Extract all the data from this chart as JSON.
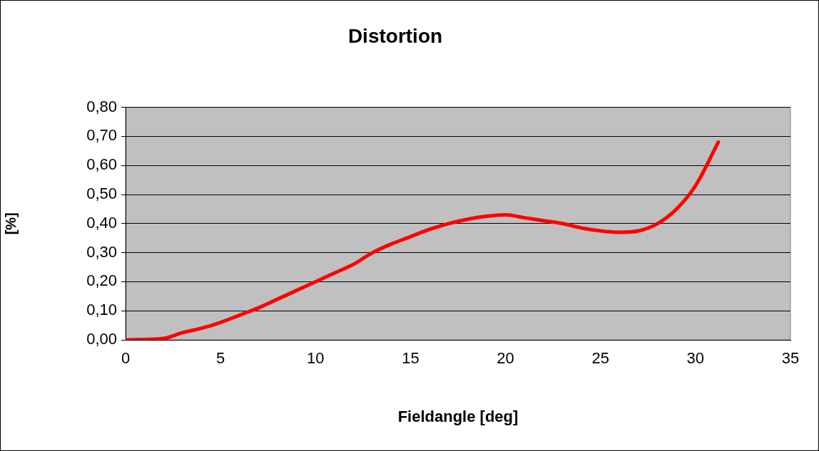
{
  "chart_data": {
    "type": "line",
    "title": "Distortion",
    "xlabel": "Fieldangle [deg]",
    "ylabel": "[%]",
    "series": [
      {
        "color": "#ff0000",
        "x": [
          0,
          2,
          3,
          4,
          5,
          6,
          7,
          8,
          9,
          10,
          11,
          12,
          13,
          14,
          15,
          16,
          17,
          18,
          19,
          20,
          21,
          22,
          23,
          24,
          25,
          26,
          27,
          28,
          29,
          30,
          31.2
        ],
        "values": [
          0,
          0.005,
          0.025,
          0.04,
          0.06,
          0.085,
          0.11,
          0.14,
          0.17,
          0.2,
          0.23,
          0.26,
          0.3,
          0.33,
          0.355,
          0.38,
          0.4,
          0.415,
          0.425,
          0.43,
          0.42,
          0.41,
          0.4,
          0.385,
          0.375,
          0.37,
          0.375,
          0.4,
          0.45,
          0.53,
          0.68
        ]
      }
    ],
    "xlim": [
      0,
      35
    ],
    "xticks": [
      0,
      5,
      10,
      15,
      20,
      25,
      30,
      35
    ],
    "ylim": [
      0,
      0.8
    ],
    "yticks": [
      {
        "value": 0,
        "label": "0,00"
      },
      {
        "value": 0.1,
        "label": "0,10"
      },
      {
        "value": 0.2,
        "label": "0,20"
      },
      {
        "value": 0.3,
        "label": "0,30"
      },
      {
        "value": 0.4,
        "label": "0,40"
      },
      {
        "value": 0.5,
        "label": "0,50"
      },
      {
        "value": 0.6,
        "label": "0,60"
      },
      {
        "value": 0.7,
        "label": "0,70"
      },
      {
        "value": 0.8,
        "label": "0,80"
      }
    ],
    "grid": "y",
    "legend": false,
    "marker": "none",
    "line_style": "solid"
  }
}
